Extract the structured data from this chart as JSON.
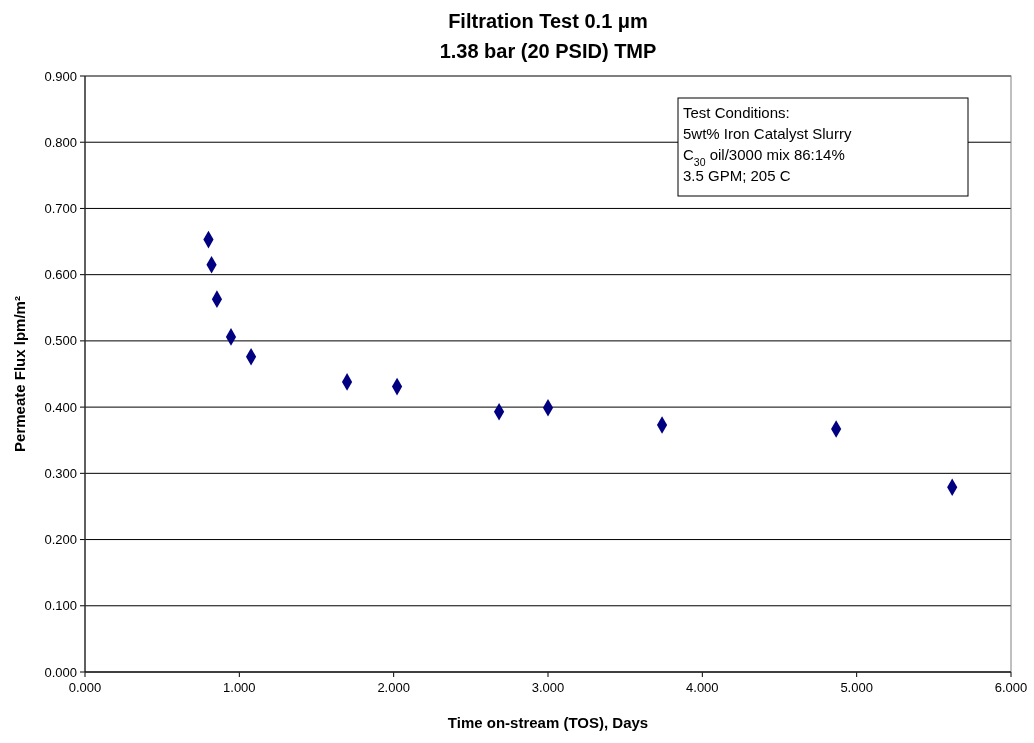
{
  "chart_data": {
    "type": "scatter",
    "title": "Filtration Test 0.1 μm",
    "subtitle": "1.38 bar (20 PSID) TMP",
    "xlabel": "Time on-stream (TOS), Days",
    "ylabel": "Permeate Flux lpm/m²",
    "x": [
      0.8,
      0.82,
      0.855,
      0.946,
      1.076,
      1.698,
      2.022,
      2.683,
      3.0,
      3.739,
      4.867,
      5.619
    ],
    "series": [
      {
        "color": "#000080",
        "values": [
          0.653,
          0.615,
          0.563,
          0.506,
          0.476,
          0.438,
          0.431,
          0.393,
          0.399,
          0.373,
          0.367,
          0.279
        ]
      }
    ],
    "xlim": [
      0,
      6
    ],
    "ylim": [
      0,
      0.9
    ],
    "xticks": [
      {
        "value": 0,
        "label": "0.000"
      },
      {
        "value": 1,
        "label": "1.000"
      },
      {
        "value": 2,
        "label": "2.000"
      },
      {
        "value": 3,
        "label": "3.000"
      },
      {
        "value": 4,
        "label": "4.000"
      },
      {
        "value": 5,
        "label": "5.000"
      },
      {
        "value": 6,
        "label": "6.000"
      }
    ],
    "yticks": [
      {
        "value": 0,
        "label": "0.000"
      },
      {
        "value": 0.1,
        "label": "0.100"
      },
      {
        "value": 0.2,
        "label": "0.200"
      },
      {
        "value": 0.3,
        "label": "0.300"
      },
      {
        "value": 0.4,
        "label": "0.400"
      },
      {
        "value": 0.5,
        "label": "0.500"
      },
      {
        "value": 0.6,
        "label": "0.600"
      },
      {
        "value": 0.7,
        "label": "0.700"
      },
      {
        "value": 0.8,
        "label": "0.800"
      },
      {
        "value": 0.9,
        "label": "0.900"
      }
    ],
    "grid": "y",
    "marker": "diamond",
    "annotations": [
      "Test Conditions:",
      "5wt% Iron Catalyst Slurry",
      "C$_{30}$ oil/3000 mix 86:14%",
      "3.5 GPM; 205 C"
    ]
  }
}
